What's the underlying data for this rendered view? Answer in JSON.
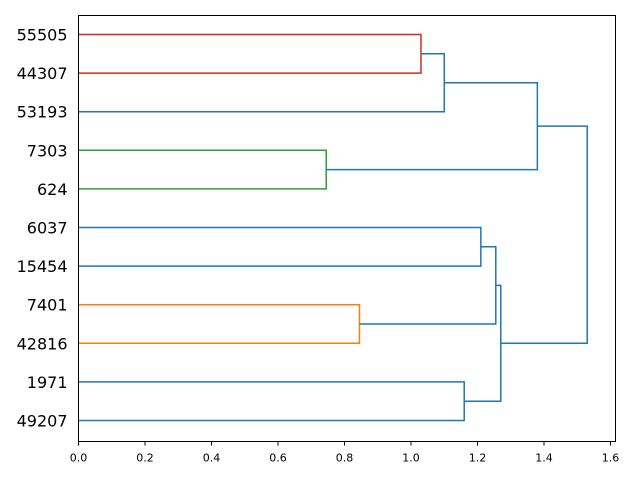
{
  "chart_data": {
    "type": "dendrogram",
    "orientation": "horizontal",
    "leaf_labels": [
      "55505",
      "44307",
      "53193",
      "7303",
      "624",
      "6037",
      "15454",
      "7401",
      "42816",
      "1971",
      "49207"
    ],
    "xlim": [
      0.0,
      1.615
    ],
    "x_ticks": [
      0.0,
      0.2,
      0.4,
      0.6,
      0.8,
      1.0,
      1.2,
      1.4,
      1.6
    ],
    "x_tick_labels": [
      "0.0",
      "0.2",
      "0.4",
      "0.6",
      "0.8",
      "1.0",
      "1.2",
      "1.4",
      "1.6"
    ],
    "grid": false,
    "colors": {
      "red_cluster": "#d62728",
      "green_cluster": "#2ca02c",
      "orange_cluster": "#ff7f0e",
      "above_threshold": "#1f77b4"
    },
    "merges": [
      {
        "id": "c1",
        "left": "55505",
        "right": "44307",
        "distance": 1.03,
        "color": "red_cluster"
      },
      {
        "id": "c2",
        "left": "c1",
        "right": "53193",
        "distance": 1.1,
        "color": "above_threshold"
      },
      {
        "id": "c3",
        "left": "7303",
        "right": "624",
        "distance": 0.745,
        "color": "green_cluster"
      },
      {
        "id": "c4",
        "left": "c2",
        "right": "c3",
        "distance": 1.38,
        "color": "above_threshold"
      },
      {
        "id": "c5",
        "left": "6037",
        "right": "15454",
        "distance": 1.21,
        "color": "above_threshold"
      },
      {
        "id": "c6",
        "left": "7401",
        "right": "42816",
        "distance": 0.845,
        "color": "orange_cluster"
      },
      {
        "id": "c7",
        "left": "c5",
        "right": "c6",
        "distance": 1.255,
        "color": "above_threshold"
      },
      {
        "id": "c8",
        "left": "1971",
        "right": "49207",
        "distance": 1.16,
        "color": "above_threshold"
      },
      {
        "id": "c9",
        "left": "c7",
        "right": "c8",
        "distance": 1.27,
        "color": "above_threshold"
      },
      {
        "id": "c10",
        "left": "c4",
        "right": "c9",
        "distance": 1.53,
        "color": "above_threshold"
      }
    ]
  }
}
